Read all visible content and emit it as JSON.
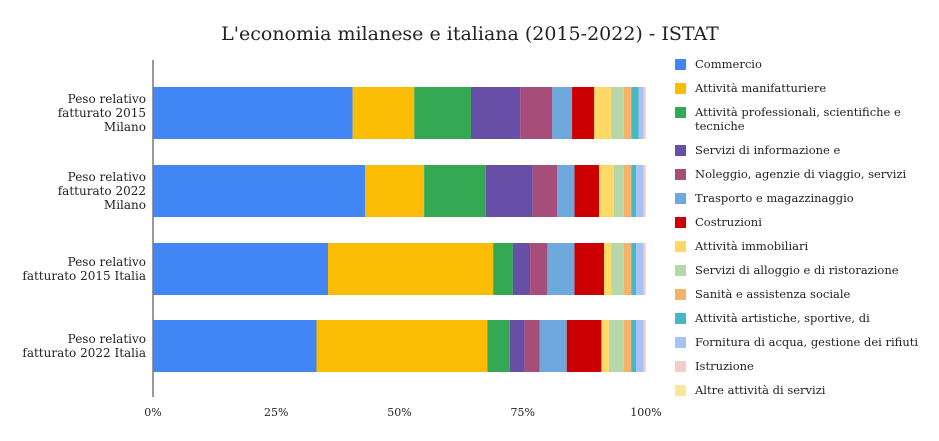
{
  "chart_data": {
    "type": "bar",
    "orientation": "horizontal",
    "stacked": true,
    "normalized": true,
    "title": "L'economia milanese e italiana (2015-2022) - ISTAT",
    "xlabel": "",
    "ylabel": "",
    "xlim": [
      0,
      100
    ],
    "xticks": [
      "0%",
      "25%",
      "50%",
      "75%",
      "100%"
    ],
    "legend_position": "right",
    "categories": [
      [
        "Peso relativo",
        "fatturato 2015",
        "Milano"
      ],
      [
        "Peso relativo",
        "fatturato 2022",
        "Milano"
      ],
      [
        "Peso relativo",
        "fatturato 2015 Italia"
      ],
      [
        "Peso relativo",
        "fatturato 2022 Italia"
      ]
    ],
    "series": [
      {
        "name": "Commercio",
        "color": "#4285f4",
        "values": [
          40.5,
          43.0,
          35.5,
          33.0
        ]
      },
      {
        "name": "Attività manifatturiere",
        "color": "#fbbc04",
        "values": [
          12.5,
          12.0,
          33.5,
          34.5
        ]
      },
      {
        "name": "Attività professionali, scientifiche e tecniche",
        "color": "#34a853",
        "values": [
          11.5,
          12.5,
          4.0,
          4.5
        ]
      },
      {
        "name": "Servizi di informazione e",
        "color": "#674ea7",
        "values": [
          10.0,
          9.5,
          3.5,
          3.0
        ]
      },
      {
        "name": "Noleggio, agenzie di viaggio, servizi",
        "color": "#a64d79",
        "values": [
          6.5,
          5.0,
          3.5,
          3.0
        ]
      },
      {
        "name": "Trasporto e magazzinaggio",
        "color": "#6fa8dc",
        "values": [
          4.0,
          3.5,
          5.5,
          5.5
        ]
      },
      {
        "name": "Costruzioni",
        "color": "#cc0000",
        "values": [
          4.5,
          5.0,
          6.0,
          7.0
        ]
      },
      {
        "name": "Attività immobiliari",
        "color": "#ffd966",
        "values": [
          3.5,
          3.0,
          1.5,
          1.5
        ]
      },
      {
        "name": "Servizi di alloggio e di ristorazione",
        "color": "#b6d7a8",
        "values": [
          2.5,
          2.0,
          2.5,
          3.0
        ]
      },
      {
        "name": "Sanità e assistenza sociale",
        "color": "#f6b26b",
        "values": [
          1.5,
          1.5,
          1.5,
          1.5
        ]
      },
      {
        "name": "Attività artistiche, sportive, di",
        "color": "#45b8c4",
        "values": [
          1.5,
          1.0,
          1.0,
          1.0
        ]
      },
      {
        "name": "Fornitura di acqua, gestione dei rifiuti",
        "color": "#a4c2f4",
        "values": [
          1.0,
          1.5,
          1.5,
          1.5
        ]
      },
      {
        "name": "Istruzione",
        "color": "#f4cccc",
        "values": [
          0.3,
          0.3,
          0.3,
          0.3
        ]
      },
      {
        "name": "Altre attività di servizi",
        "color": "#ffe599",
        "values": [
          0.2,
          0.2,
          0.2,
          0.2
        ]
      }
    ]
  }
}
